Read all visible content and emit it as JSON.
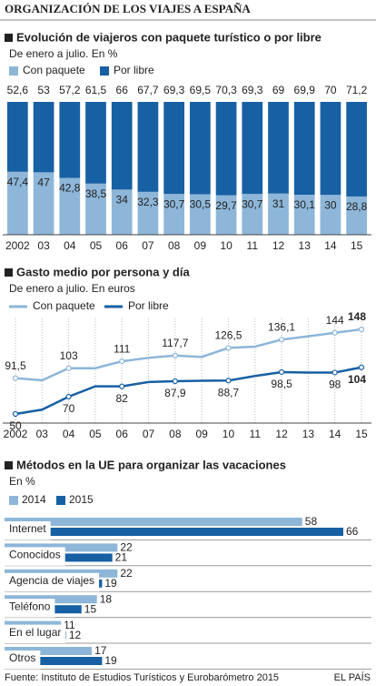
{
  "header": {
    "title": "ORGANIZACIÓN DE LOS VIAJES A ESPAÑA"
  },
  "chart_data": [
    {
      "type": "stacked-bar",
      "title": "Evolución de viajeros con paquete turístico o por libre",
      "subtitle": "De enero a julio. En %",
      "categories": [
        "2002",
        "03",
        "04",
        "05",
        "06",
        "07",
        "08",
        "09",
        "10",
        "11",
        "12",
        "13",
        "14",
        "15"
      ],
      "series": [
        {
          "name": "Con paquete",
          "color": "#8db6d9",
          "values": [
            47.4,
            47,
            42.8,
            38.5,
            34,
            32.3,
            30.7,
            30.5,
            29.7,
            30.7,
            31,
            30.1,
            30,
            28.8
          ],
          "value_labels": [
            "47,4",
            "47",
            "42,8",
            "38,5",
            "34",
            "32,3",
            "30,7",
            "30,5",
            "29,7",
            "30,7",
            "31",
            "30,1",
            "30",
            "28,8"
          ]
        },
        {
          "name": "Por libre",
          "color": "#1760a3",
          "values": [
            52.6,
            53,
            57.2,
            61.5,
            66,
            67.7,
            69.3,
            69.5,
            70.3,
            69.3,
            69,
            69.9,
            70,
            71.2
          ],
          "value_labels": [
            "52,6",
            "53",
            "57,2",
            "61,5",
            "66",
            "67,7",
            "69,3",
            "69,5",
            "70,3",
            "69,3",
            "69",
            "69,9",
            "70",
            "71,2"
          ]
        }
      ]
    },
    {
      "type": "line",
      "title": "Gasto medio por persona y día",
      "subtitle": "De enero a julio. En euros",
      "categories": [
        "2002",
        "03",
        "04",
        "05",
        "06",
        "07",
        "08",
        "09",
        "10",
        "11",
        "12",
        "13",
        "14",
        "15"
      ],
      "grid": true,
      "series": [
        {
          "name": "Con paquete",
          "color": "#8db6d9",
          "values": [
            91.5,
            89,
            103,
            103,
            111,
            115,
            117.7,
            116,
            126.5,
            128,
            136.1,
            140,
            144,
            148
          ],
          "value_labels": [
            "91,5",
            null,
            "103",
            null,
            "111",
            null,
            "117,7",
            null,
            "126,5",
            null,
            "136,1",
            null,
            "144",
            "148"
          ]
        },
        {
          "name": "Por libre",
          "color": "#1760a3",
          "values": [
            50,
            55,
            70,
            82,
            82,
            87,
            87.9,
            88.5,
            88.7,
            94,
            98.5,
            98,
            98,
            104
          ],
          "value_labels": [
            "50",
            null,
            "70",
            null,
            "82",
            null,
            "87,9",
            null,
            "88,7",
            null,
            "98,5",
            null,
            "98",
            "104"
          ]
        }
      ]
    },
    {
      "type": "hbar",
      "title": "Métodos en la UE para organizar las vacaciones",
      "subtitle": "En %",
      "categories": [
        "Internet",
        "Conocidos",
        "Agencia de viajes",
        "Teléfono",
        "En el lugar",
        "Otros"
      ],
      "series": [
        {
          "name": "2014",
          "color": "#8db6d9",
          "values": [
            58,
            22,
            22,
            18,
            11,
            17
          ]
        },
        {
          "name": "2015",
          "color": "#1760a3",
          "values": [
            66,
            21,
            19,
            15,
            12,
            19
          ]
        }
      ]
    }
  ],
  "source": "Fuente:  Instituto de Estudios Turísticos y Eurobarómetro 2015",
  "credit": "EL PAÍS"
}
